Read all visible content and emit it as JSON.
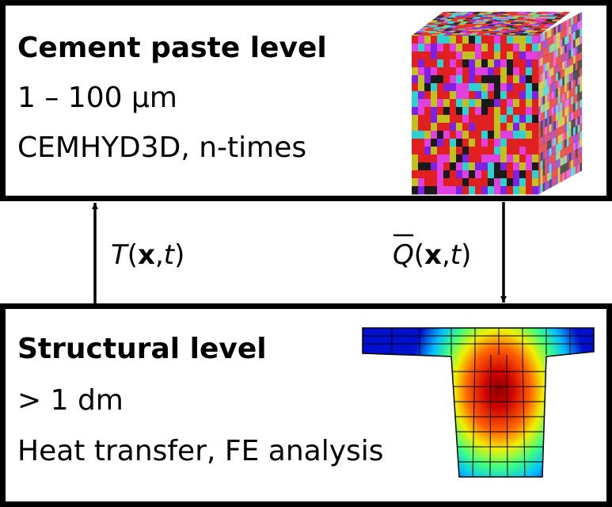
{
  "levels": [
    {
      "title": "Cement paste level",
      "scale": "1 – 100 μm",
      "method": "CEMHYD3D, n-times"
    },
    {
      "title": "Structural level",
      "scale": "> 1 dm",
      "method": "Heat transfer, FE analysis"
    }
  ],
  "arrows": [
    {
      "parts": [
        "T",
        "(",
        "x",
        ",",
        "t",
        ")"
      ]
    },
    {
      "parts": [
        "Q",
        "(",
        "x",
        ",",
        "t",
        ")"
      ]
    }
  ]
}
